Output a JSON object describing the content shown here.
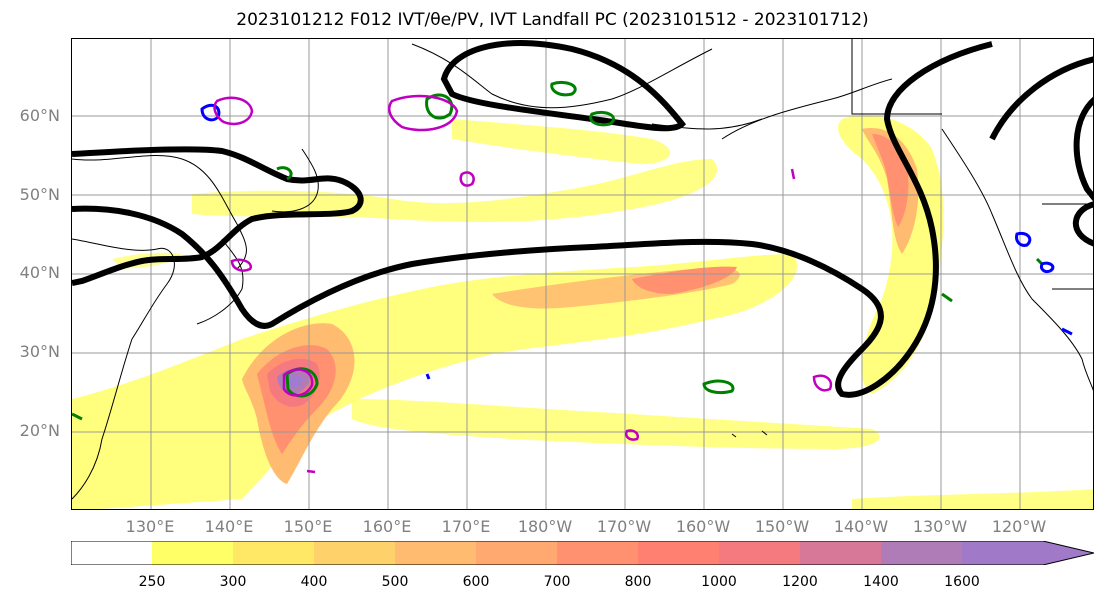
{
  "title": "2023101212 F012 IVT/θe/PV, IVT Landfall PC (2023101512 - 2023101712)",
  "lat_labels": [
    "60°N",
    "50°N",
    "40°N",
    "30°N",
    "20°N"
  ],
  "lon_labels": [
    "130°E",
    "140°E",
    "150°E",
    "160°E",
    "170°E",
    "180°W",
    "170°W",
    "160°W",
    "150°W",
    "140°W",
    "130°W",
    "120°W"
  ],
  "colorbar": {
    "ticks": [
      "250",
      "300",
      "400",
      "500",
      "600",
      "700",
      "800",
      "1000",
      "1200",
      "1400",
      "1600"
    ],
    "colors": [
      "#ffff66",
      "#ffe866",
      "#ffd16a",
      "#ffbc70",
      "#ffa86f",
      "#ff9070",
      "#ff7f70",
      "#f47a80",
      "#d87898",
      "#b07cb8",
      "#9f7ccf",
      "#a07ac8"
    ],
    "extend": "max"
  },
  "legend_colors": {
    "ivt_low": "#ffff66",
    "ivt_high": "#9b7fc8",
    "pc_contour": "#000000",
    "theta_e": "#008000",
    "pv": "#0000ff",
    "pv_alt": "#c000c0",
    "coastline": "#000000"
  }
}
